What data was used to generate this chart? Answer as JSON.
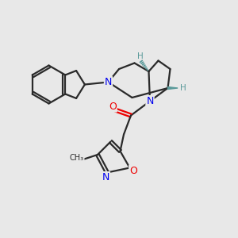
{
  "bg_color": "#e8e8e8",
  "bond_color": "#2a2a2a",
  "N_color": "#0000ee",
  "O_color": "#ee0000",
  "H_stereo_color": "#5a9a9a",
  "bond_width": 1.6,
  "figsize": [
    3.0,
    3.0
  ],
  "dpi": 100,
  "xlim": [
    0,
    10
  ],
  "ylim": [
    0,
    10
  ]
}
